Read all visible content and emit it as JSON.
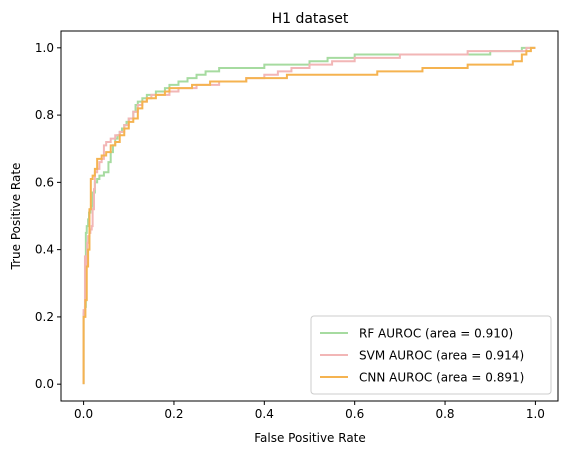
{
  "chart_data": {
    "type": "line",
    "title": "H1 dataset",
    "xlabel": "False Positive Rate",
    "ylabel": "True Positive Rate",
    "xlim": [
      -0.05,
      1.05
    ],
    "ylim": [
      -0.05,
      1.05
    ],
    "xticks": [
      0.0,
      0.2,
      0.4,
      0.6,
      0.8,
      1.0
    ],
    "yticks": [
      0.0,
      0.2,
      0.4,
      0.6,
      0.8,
      1.0
    ],
    "grid": false,
    "legend_position": "bottom-right",
    "series": [
      {
        "name": "RF AUROC (area = 0.910)",
        "color": "#a6dba0",
        "x": [
          0,
          0,
          0.003,
          0.005,
          0.007,
          0.01,
          0.012,
          0.015,
          0.018,
          0.02,
          0.025,
          0.03,
          0.035,
          0.04,
          0.045,
          0.05,
          0.055,
          0.06,
          0.065,
          0.07,
          0.075,
          0.08,
          0.085,
          0.09,
          0.095,
          0.1,
          0.105,
          0.11,
          0.115,
          0.12,
          0.125,
          0.13,
          0.135,
          0.14,
          0.15,
          0.16,
          0.17,
          0.18,
          0.19,
          0.2,
          0.21,
          0.22,
          0.23,
          0.24,
          0.25,
          0.26,
          0.27,
          0.28,
          0.29,
          0.3,
          0.32,
          0.34,
          0.36,
          0.38,
          0.4,
          0.42,
          0.44,
          0.46,
          0.48,
          0.5,
          0.52,
          0.54,
          0.56,
          0.58,
          0.6,
          0.62,
          0.64,
          0.66,
          0.7,
          0.75,
          0.8,
          0.85,
          0.9,
          0.95,
          0.97,
          0.98,
          0.99,
          1.0
        ],
        "y": [
          0,
          0.21,
          0.23,
          0.45,
          0.47,
          0.49,
          0.51,
          0.52,
          0.53,
          0.57,
          0.6,
          0.61,
          0.62,
          0.62,
          0.63,
          0.63,
          0.66,
          0.69,
          0.71,
          0.73,
          0.74,
          0.75,
          0.76,
          0.77,
          0.78,
          0.79,
          0.79,
          0.81,
          0.83,
          0.84,
          0.84,
          0.85,
          0.85,
          0.86,
          0.86,
          0.87,
          0.87,
          0.88,
          0.89,
          0.89,
          0.9,
          0.9,
          0.91,
          0.91,
          0.92,
          0.92,
          0.93,
          0.93,
          0.93,
          0.94,
          0.94,
          0.94,
          0.94,
          0.94,
          0.95,
          0.95,
          0.95,
          0.95,
          0.95,
          0.96,
          0.96,
          0.97,
          0.97,
          0.97,
          0.98,
          0.98,
          0.98,
          0.98,
          0.98,
          0.98,
          0.98,
          0.98,
          0.99,
          0.99,
          1.0,
          1.0,
          1.0,
          1.0
        ]
      },
      {
        "name": "SVM AUROC (area = 0.914)",
        "color": "#f2b6b6",
        "x": [
          0,
          0,
          0.003,
          0.005,
          0.008,
          0.01,
          0.013,
          0.015,
          0.018,
          0.02,
          0.023,
          0.025,
          0.03,
          0.035,
          0.04,
          0.045,
          0.05,
          0.055,
          0.06,
          0.065,
          0.07,
          0.08,
          0.09,
          0.1,
          0.11,
          0.12,
          0.13,
          0.14,
          0.15,
          0.17,
          0.19,
          0.21,
          0.23,
          0.25,
          0.27,
          0.3,
          0.33,
          0.36,
          0.4,
          0.43,
          0.46,
          0.5,
          0.55,
          0.6,
          0.65,
          0.7,
          0.75,
          0.8,
          0.85,
          0.9,
          0.95,
          0.98,
          1.0
        ],
        "y": [
          0,
          0.22,
          0.38,
          0.35,
          0.42,
          0.44,
          0.45,
          0.46,
          0.47,
          0.52,
          0.58,
          0.63,
          0.64,
          0.66,
          0.67,
          0.71,
          0.72,
          0.72,
          0.73,
          0.73,
          0.74,
          0.75,
          0.77,
          0.79,
          0.81,
          0.83,
          0.84,
          0.85,
          0.86,
          0.86,
          0.87,
          0.88,
          0.88,
          0.89,
          0.89,
          0.9,
          0.9,
          0.91,
          0.92,
          0.93,
          0.94,
          0.95,
          0.96,
          0.97,
          0.97,
          0.98,
          0.98,
          0.98,
          0.99,
          0.99,
          0.99,
          1.0,
          1.0
        ]
      },
      {
        "name": "CNN AUROC (area = 0.891)",
        "color": "#f5b350",
        "x": [
          0,
          0,
          0.004,
          0.007,
          0.01,
          0.013,
          0.016,
          0.02,
          0.025,
          0.03,
          0.035,
          0.04,
          0.05,
          0.06,
          0.07,
          0.08,
          0.09,
          0.1,
          0.11,
          0.12,
          0.13,
          0.14,
          0.15,
          0.16,
          0.17,
          0.18,
          0.19,
          0.2,
          0.22,
          0.24,
          0.26,
          0.28,
          0.3,
          0.33,
          0.36,
          0.4,
          0.45,
          0.5,
          0.55,
          0.6,
          0.65,
          0.7,
          0.75,
          0.8,
          0.85,
          0.9,
          0.95,
          0.97,
          0.98,
          0.99,
          1.0
        ],
        "y": [
          0,
          0.2,
          0.25,
          0.35,
          0.4,
          0.52,
          0.61,
          0.62,
          0.64,
          0.67,
          0.67,
          0.68,
          0.69,
          0.71,
          0.72,
          0.74,
          0.76,
          0.78,
          0.79,
          0.82,
          0.84,
          0.85,
          0.85,
          0.86,
          0.86,
          0.87,
          0.88,
          0.88,
          0.88,
          0.89,
          0.89,
          0.9,
          0.9,
          0.9,
          0.91,
          0.91,
          0.92,
          0.92,
          0.92,
          0.92,
          0.93,
          0.93,
          0.94,
          0.94,
          0.95,
          0.95,
          0.96,
          0.98,
          0.99,
          1.0,
          1.0
        ]
      }
    ]
  }
}
